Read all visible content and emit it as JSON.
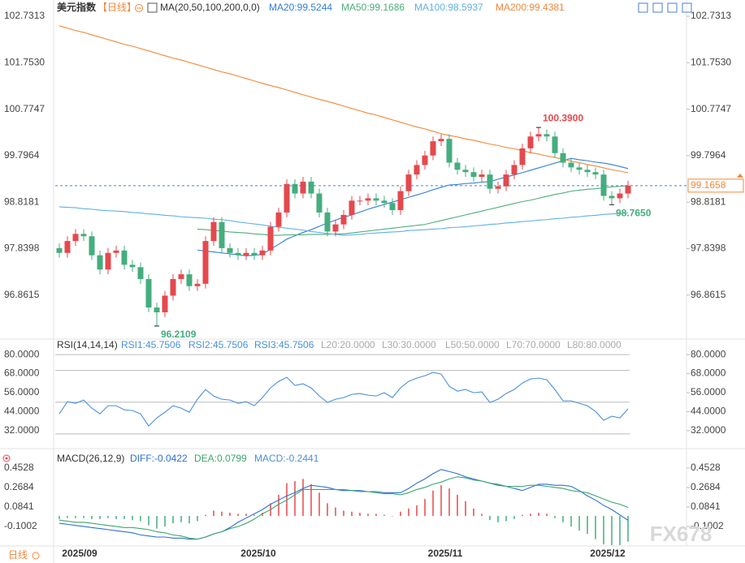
{
  "chart_data": [
    {
      "type": "candlestick",
      "title": "美元指数",
      "subtitle": "【日线】",
      "indicator": "MA(20,50,100,200,0,0)",
      "categories": [
        null,
        null,
        "2025/09",
        null,
        null,
        null,
        null,
        null,
        null,
        null,
        null,
        null,
        null,
        null,
        null,
        null,
        null,
        null,
        null,
        null,
        null,
        null,
        null,
        null,
        "2025/10",
        null,
        null,
        null,
        null,
        null,
        null,
        null,
        null,
        null,
        null,
        null,
        null,
        null,
        null,
        null,
        null,
        null,
        null,
        null,
        null,
        null,
        null,
        "2025/11",
        null,
        null,
        null,
        null,
        null,
        null,
        null,
        null,
        null,
        null,
        null,
        null,
        null,
        null,
        null,
        null,
        null,
        null,
        null,
        "2025/12",
        null,
        null,
        null
      ],
      "open": [
        97.85,
        97.75,
        98.0,
        98.15,
        98.1,
        97.7,
        97.4,
        97.75,
        97.8,
        97.5,
        97.45,
        97.2,
        96.6,
        96.5,
        96.85,
        97.2,
        97.3,
        97.05,
        97.1,
        98.0,
        98.4,
        97.85,
        97.75,
        97.7,
        97.75,
        97.7,
        97.8,
        98.3,
        98.6,
        99.2,
        99.0,
        99.25,
        99.0,
        98.6,
        98.2,
        98.35,
        98.55,
        98.85,
        98.85,
        98.9,
        98.85,
        98.8,
        98.65,
        99.05,
        99.4,
        99.6,
        99.8,
        100.1,
        100.15,
        99.65,
        99.5,
        99.45,
        99.35,
        99.4,
        99.1,
        99.15,
        99.4,
        99.6,
        99.95,
        100.2,
        100.25,
        100.2,
        99.85,
        99.65,
        99.55,
        99.5,
        99.45,
        99.4,
        98.95,
        98.9,
        99.0
      ],
      "high": [
        97.95,
        98.1,
        98.25,
        98.25,
        98.2,
        97.8,
        97.85,
        97.9,
        97.9,
        97.6,
        97.55,
        97.3,
        96.7,
        96.95,
        97.3,
        97.4,
        97.4,
        97.2,
        98.1,
        98.5,
        98.5,
        97.95,
        97.85,
        97.85,
        97.85,
        97.9,
        98.4,
        98.7,
        99.3,
        99.3,
        99.35,
        99.35,
        99.1,
        98.7,
        98.45,
        98.65,
        98.95,
        98.95,
        99.0,
        99.0,
        98.95,
        98.9,
        99.15,
        99.5,
        99.7,
        99.9,
        100.2,
        100.25,
        100.25,
        99.75,
        99.6,
        99.55,
        99.5,
        99.5,
        99.25,
        99.5,
        99.7,
        100.05,
        100.3,
        100.39,
        100.35,
        100.3,
        99.95,
        99.75,
        99.65,
        99.6,
        99.55,
        99.5,
        99.05,
        99.1,
        99.27
      ],
      "low": [
        97.65,
        97.65,
        97.9,
        98.0,
        97.6,
        97.3,
        97.3,
        97.65,
        97.4,
        97.35,
        97.1,
        96.5,
        96.2109,
        96.4,
        96.75,
        97.1,
        96.95,
        96.95,
        97.0,
        97.9,
        97.75,
        97.65,
        97.6,
        97.6,
        97.6,
        97.6,
        97.7,
        98.2,
        98.5,
        98.9,
        98.9,
        98.9,
        98.5,
        98.1,
        98.1,
        98.25,
        98.45,
        98.75,
        98.75,
        98.75,
        98.7,
        98.55,
        98.55,
        98.95,
        99.3,
        99.5,
        99.7,
        100.0,
        99.55,
        99.4,
        99.35,
        99.25,
        99.25,
        99.0,
        99.0,
        99.05,
        99.3,
        99.5,
        99.85,
        100.1,
        100.1,
        99.75,
        99.55,
        99.45,
        99.4,
        99.35,
        99.3,
        98.85,
        98.765,
        98.8,
        98.9
      ],
      "close": [
        97.75,
        98.0,
        98.15,
        98.1,
        97.7,
        97.4,
        97.75,
        97.8,
        97.5,
        97.45,
        97.2,
        96.6,
        96.5,
        96.85,
        97.2,
        97.3,
        97.05,
        97.1,
        98.0,
        98.4,
        97.85,
        97.75,
        97.7,
        97.75,
        97.7,
        97.8,
        98.3,
        98.6,
        99.2,
        99.0,
        99.25,
        99.0,
        98.6,
        98.2,
        98.35,
        98.55,
        98.85,
        98.85,
        98.9,
        98.85,
        98.8,
        98.65,
        99.05,
        99.4,
        99.6,
        99.8,
        100.1,
        100.15,
        99.65,
        99.5,
        99.45,
        99.35,
        99.4,
        99.1,
        99.15,
        99.4,
        99.6,
        99.95,
        100.2,
        100.25,
        100.2,
        99.85,
        99.65,
        99.55,
        99.5,
        99.45,
        99.4,
        98.95,
        98.9,
        99.0,
        99.1658
      ],
      "up_color": "#e5484d",
      "down_color": "#45ad7e",
      "series": [
        {
          "name": "MA20:99.5244",
          "color": "#2f7fd8",
          "values": [
            null,
            null,
            null,
            null,
            null,
            null,
            null,
            null,
            null,
            null,
            null,
            null,
            null,
            null,
            null,
            null,
            null,
            97.81,
            97.79,
            97.77,
            97.75,
            97.73,
            97.71,
            97.69,
            97.7,
            97.72,
            97.83,
            97.93,
            98.04,
            98.11,
            98.18,
            98.24,
            98.31,
            98.38,
            98.44,
            98.5,
            98.55,
            98.61,
            98.67,
            98.72,
            98.77,
            98.82,
            98.87,
            98.92,
            98.97,
            99.02,
            99.08,
            99.13,
            99.18,
            99.19,
            99.21,
            99.22,
            99.24,
            99.25,
            99.3,
            99.35,
            99.39,
            99.44,
            99.49,
            99.54,
            99.59,
            99.64,
            99.69,
            99.74,
            99.71,
            99.69,
            99.66,
            99.64,
            99.61,
            99.57,
            99.5244
          ]
        },
        {
          "name": "MA50:99.1686",
          "color": "#4cae7a",
          "values": [
            null,
            null,
            null,
            null,
            null,
            null,
            null,
            null,
            null,
            null,
            null,
            null,
            null,
            null,
            null,
            null,
            null,
            98.25,
            98.24,
            98.22,
            98.21,
            98.19,
            98.18,
            98.17,
            98.15,
            98.14,
            98.12,
            98.12,
            98.13,
            98.13,
            98.13,
            98.14,
            98.14,
            98.14,
            98.15,
            98.15,
            98.17,
            98.19,
            98.21,
            98.23,
            98.25,
            98.27,
            98.29,
            98.31,
            98.33,
            98.35,
            98.39,
            98.43,
            98.47,
            98.51,
            98.55,
            98.59,
            98.63,
            98.67,
            98.71,
            98.75,
            98.79,
            98.83,
            98.86,
            98.9,
            98.94,
            98.98,
            99.01,
            99.05,
            99.07,
            99.09,
            99.1,
            99.12,
            99.14,
            99.15,
            99.1686
          ]
        },
        {
          "name": "MA100:98.5937",
          "color": "#5fb0e6",
          "values": [
            98.72,
            98.71,
            98.7,
            98.68,
            98.67,
            98.65,
            98.64,
            98.63,
            98.62,
            98.6,
            98.59,
            98.57,
            98.56,
            98.54,
            98.53,
            98.51,
            98.5,
            98.49,
            98.48,
            98.46,
            98.45,
            98.43,
            98.4,
            98.38,
            98.36,
            98.34,
            98.31,
            98.29,
            98.27,
            98.25,
            98.23,
            98.2,
            98.18,
            98.16,
            98.14,
            98.12,
            98.13,
            98.14,
            98.16,
            98.17,
            98.18,
            98.19,
            98.2,
            98.22,
            98.23,
            98.24,
            98.25,
            98.26,
            98.28,
            98.29,
            98.3,
            98.32,
            98.33,
            98.35,
            98.36,
            98.38,
            98.39,
            98.41,
            98.42,
            98.44,
            98.45,
            98.47,
            98.48,
            98.5,
            98.51,
            98.53,
            98.54,
            98.56,
            98.57,
            98.58,
            98.5937
          ]
        },
        {
          "name": "MA200:99.4381",
          "color": "#f0883a",
          "values": [
            102.53,
            102.48,
            102.43,
            102.39,
            102.34,
            102.29,
            102.24,
            102.19,
            102.14,
            102.1,
            102.05,
            102.0,
            101.95,
            101.9,
            101.85,
            101.81,
            101.76,
            101.71,
            101.66,
            101.61,
            101.56,
            101.52,
            101.47,
            101.42,
            101.37,
            101.32,
            101.27,
            101.23,
            101.18,
            101.13,
            101.08,
            101.03,
            100.98,
            100.94,
            100.89,
            100.84,
            100.79,
            100.74,
            100.69,
            100.65,
            100.6,
            100.55,
            100.5,
            100.45,
            100.4,
            100.36,
            100.31,
            100.26,
            100.22,
            100.19,
            100.15,
            100.12,
            100.08,
            100.04,
            100.01,
            99.97,
            99.94,
            99.9,
            99.86,
            99.83,
            99.79,
            99.76,
            99.72,
            99.68,
            99.65,
            99.61,
            99.58,
            99.54,
            99.5,
            99.47,
            99.4381
          ]
        }
      ],
      "annotations": [
        {
          "value": 100.39,
          "label": "100.3900"
        },
        {
          "value": 96.2109,
          "label": "96.2109"
        },
        {
          "value": 98.765,
          "label": "98.7650"
        }
      ],
      "last_price_label": "99.1658",
      "ylim": [
        95.936,
        102.7313
      ],
      "yticks": [
        102.7313,
        {
          "value": 101.753,
          "label": "101.7530"
        },
        100.7747,
        99.7964,
        98.8181,
        97.8398,
        96.8615
      ]
    },
    {
      "type": "line",
      "title": "RSI(14,14,14)",
      "legend": [
        "RSI1:45.7506",
        "RSI2:45.7506",
        "RSI3:45.7506",
        "L20:20.0000",
        "L30:30.0000",
        "L50:50.0000",
        "L70:70.0000",
        "L80:80.0000"
      ],
      "color": "#4a90d9",
      "values": [
        42.64,
        50.32,
        49.29,
        51.34,
        46.22,
        42.64,
        47.76,
        47.76,
        45.2,
        44.69,
        42.64,
        34.96,
        40.08,
        43.66,
        47.76,
        46.22,
        43.66,
        51.85,
        57.99,
        53.9,
        51.85,
        51.34,
        49.29,
        50.32,
        47.76,
        52.88,
        59.02,
        63.11,
        65.67,
        60.55,
        61.58,
        59.02,
        53.9,
        49.81,
        51.85,
        52.88,
        54.92,
        55.44,
        54.41,
        53.9,
        55.95,
        52.88,
        59.02,
        63.11,
        65.16,
        66.69,
        68.74,
        67.72,
        60.04,
        56.97,
        57.99,
        55.95,
        56.46,
        49.81,
        51.85,
        55.44,
        57.99,
        62.09,
        64.65,
        65.16,
        64.14,
        57.99,
        50.83,
        50.83,
        49.29,
        47.76,
        44.18,
        38.55,
        41.11,
        40.08,
        45.7506
      ],
      "levels": [
        20,
        30,
        50,
        70,
        80
      ],
      "ylim": [
        20.7,
        86.2
      ],
      "yticks": [
        {
          "value": 80,
          "label": "80.0000"
        },
        {
          "value": 68,
          "label": "68.0000"
        },
        {
          "value": 56,
          "label": "56.0000"
        },
        {
          "value": 44,
          "label": "44.0000"
        },
        {
          "value": 32,
          "label": "32.0000"
        }
      ]
    },
    {
      "type": "macd",
      "title": "MACD(26,12,9)",
      "series": [
        {
          "name": "DIFF:-0.0422",
          "color": "#2f6fd0",
          "values": [
            -0.07,
            -0.08,
            -0.09,
            -0.1,
            -0.11,
            -0.12,
            -0.13,
            -0.14,
            -0.15,
            -0.16,
            -0.18,
            -0.19,
            -0.2,
            -0.2,
            -0.21,
            -0.21,
            -0.22,
            -0.22,
            -0.2,
            -0.17,
            -0.15,
            -0.11,
            -0.06,
            -0.02,
            0.02,
            0.06,
            0.11,
            0.15,
            0.19,
            0.22,
            0.26,
            0.29,
            0.28,
            0.27,
            0.25,
            0.24,
            0.24,
            0.24,
            0.23,
            0.23,
            0.22,
            0.22,
            0.22,
            0.26,
            0.31,
            0.35,
            0.4,
            0.44,
            0.42,
            0.4,
            0.37,
            0.35,
            0.33,
            0.31,
            0.29,
            0.28,
            0.26,
            0.24,
            0.27,
            0.3,
            0.3,
            0.29,
            0.29,
            0.28,
            0.24,
            0.19,
            0.15,
            0.1,
            0.06,
            0.01,
            -0.0422
          ]
        },
        {
          "name": "DEA:0.0799",
          "color": "#3aa86b",
          "values": [
            -0.04,
            -0.05,
            -0.06,
            -0.06,
            -0.07,
            -0.08,
            -0.09,
            -0.1,
            -0.11,
            -0.11,
            -0.12,
            -0.13,
            -0.15,
            -0.16,
            -0.18,
            -0.19,
            -0.21,
            -0.22,
            -0.2,
            -0.17,
            -0.15,
            -0.12,
            -0.1,
            -0.07,
            -0.03,
            0.02,
            0.06,
            0.11,
            0.15,
            0.2,
            0.25,
            0.25,
            0.25,
            0.25,
            0.25,
            0.25,
            0.24,
            0.23,
            0.23,
            0.22,
            0.21,
            0.21,
            0.2,
            0.22,
            0.25,
            0.27,
            0.3,
            0.32,
            0.35,
            0.37,
            0.36,
            0.34,
            0.33,
            0.31,
            0.3,
            0.28,
            0.28,
            0.28,
            0.29,
            0.29,
            0.28,
            0.27,
            0.26,
            0.24,
            0.23,
            0.22,
            0.19,
            0.16,
            0.13,
            0.11,
            0.0799
          ]
        }
      ],
      "histogram": {
        "name": "MACD:-0.2441",
        "up_color": "#e5484d",
        "down_color": "#45ad7e",
        "values": [
          -0.03,
          -0.02,
          -0.02,
          -0.02,
          -0.03,
          -0.03,
          -0.02,
          -0.03,
          -0.03,
          -0.04,
          -0.05,
          -0.09,
          -0.12,
          -0.1,
          -0.07,
          -0.06,
          -0.07,
          -0.05,
          0.01,
          0.05,
          0.04,
          0.03,
          0.02,
          0.02,
          0.01,
          0.03,
          0.12,
          0.2,
          0.31,
          0.33,
          0.35,
          0.3,
          0.22,
          0.12,
          0.08,
          0.05,
          0.04,
          0.03,
          0.02,
          0.02,
          0.01,
          0.0,
          0.04,
          0.07,
          0.1,
          0.16,
          0.24,
          0.29,
          0.26,
          0.2,
          0.14,
          0.07,
          0.02,
          -0.04,
          -0.06,
          -0.05,
          -0.03,
          0.01,
          0.02,
          0.03,
          0.02,
          -0.02,
          -0.06,
          -0.1,
          -0.14,
          -0.17,
          -0.22,
          -0.27,
          -0.3,
          -0.28,
          -0.2441
        ]
      },
      "ylim": [
        -0.2615,
        0.5834
      ],
      "yticks": [
        0.4528,
        0.2684,
        0.0841,
        -0.1002
      ]
    }
  ],
  "footer": "日线",
  "watermark": "FX678"
}
